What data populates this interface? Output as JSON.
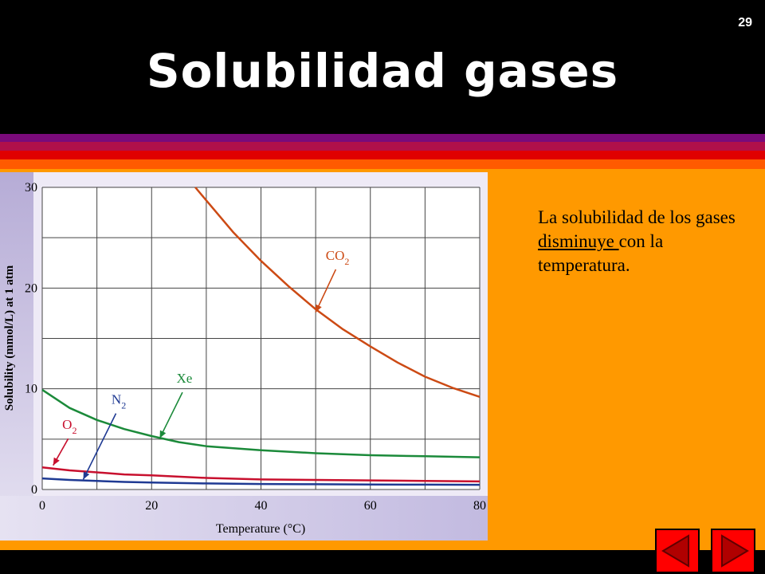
{
  "slide": {
    "page_number": "29",
    "title": "Solubilidad gases",
    "text_parts": [
      "La solubilidad de los gases ",
      "disminuye ",
      "con la temperatura."
    ]
  },
  "colors": {
    "background": "#000000",
    "content_background": "#ff9900",
    "chart_background": "#ffffff",
    "stripes": [
      "#7a0a7a",
      "#b0104a",
      "#e00000",
      "#ff5a00"
    ],
    "nav_button": "#ff0000"
  },
  "nav": {
    "prev_icon": "left-triangle-icon",
    "next_icon": "right-triangle-icon"
  },
  "chart_data": {
    "type": "line",
    "xlabel": "Temperature (°C)",
    "ylabel": "Solubility (mmol/L) at 1 atm",
    "xlim": [
      0,
      80
    ],
    "ylim": [
      0,
      30
    ],
    "x_ticks": [
      0,
      20,
      40,
      60,
      80
    ],
    "y_ticks": [
      0,
      10,
      20,
      30
    ],
    "grid": true,
    "series": [
      {
        "name": "CO2",
        "name_base": "CO",
        "name_sub": "2",
        "color": "#cc4a14",
        "x": [
          28,
          30,
          35,
          40,
          45,
          50,
          55,
          60,
          65,
          70,
          75,
          80
        ],
        "y": [
          30,
          28.7,
          25.5,
          22.7,
          20.2,
          17.9,
          15.9,
          14.2,
          12.6,
          11.2,
          10.1,
          9.2
        ]
      },
      {
        "name": "Xe",
        "name_base": "Xe",
        "name_sub": "",
        "color": "#1b8a3a",
        "x": [
          0,
          5,
          10,
          15,
          20,
          25,
          30,
          40,
          50,
          60,
          70,
          80
        ],
        "y": [
          9.9,
          8.1,
          6.9,
          6.0,
          5.3,
          4.7,
          4.3,
          3.9,
          3.6,
          3.4,
          3.3,
          3.2
        ]
      },
      {
        "name": "O2",
        "name_base": "O",
        "name_sub": "2",
        "color": "#c8102e",
        "x": [
          0,
          5,
          10,
          15,
          20,
          30,
          40,
          50,
          60,
          70,
          80
        ],
        "y": [
          2.2,
          1.9,
          1.7,
          1.5,
          1.4,
          1.15,
          1.0,
          0.95,
          0.9,
          0.85,
          0.8
        ]
      },
      {
        "name": "N2",
        "name_base": "N",
        "name_sub": "2",
        "color": "#1f3a93",
        "x": [
          0,
          5,
          10,
          15,
          20,
          30,
          40,
          50,
          60,
          70,
          80
        ],
        "y": [
          1.1,
          0.95,
          0.85,
          0.75,
          0.7,
          0.6,
          0.55,
          0.52,
          0.5,
          0.48,
          0.47
        ]
      }
    ],
    "annotations": [
      {
        "series": "CO2",
        "label_x": 54,
        "label_y": 22.8,
        "arrow_to_x": 50,
        "arrow_to_y": 17.6
      },
      {
        "series": "Xe",
        "label_x": 26,
        "label_y": 10.6,
        "arrow_to_x": 21.5,
        "arrow_to_y": 5.1
      },
      {
        "series": "N2",
        "label_x": 14,
        "label_y": 8.5,
        "arrow_to_x": 7.5,
        "arrow_to_y": 1.0
      },
      {
        "series": "O2",
        "label_x": 5,
        "label_y": 6.0,
        "arrow_to_x": 2.0,
        "arrow_to_y": 2.4
      }
    ]
  }
}
